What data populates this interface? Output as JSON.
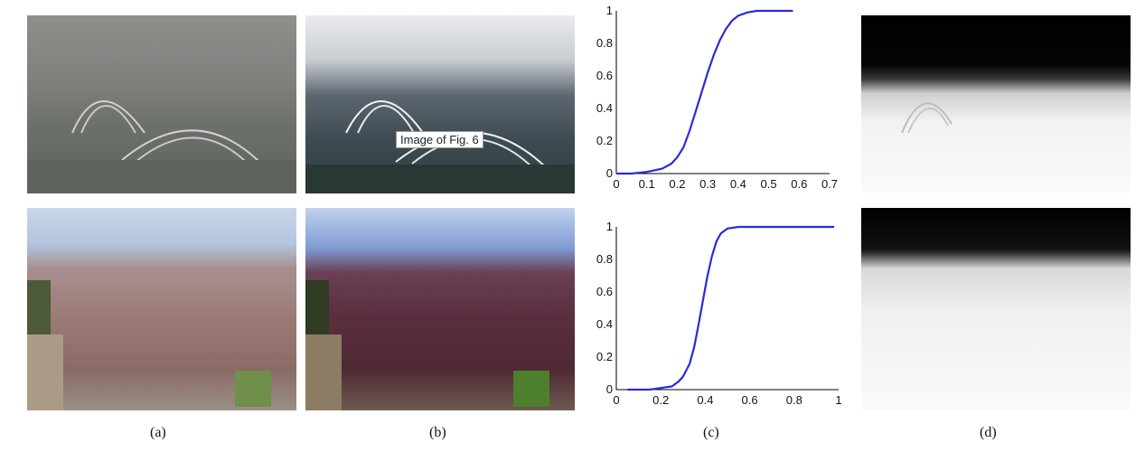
{
  "figure": {
    "tooltip": "Image of Fig. 6",
    "captions": [
      "(a)",
      "(b)",
      "(c)",
      "(d)"
    ]
  },
  "colors": {
    "curve": "#2b2bd6"
  },
  "chart_data": [
    {
      "type": "line",
      "xlim": [
        0,
        0.7
      ],
      "ylim": [
        0,
        1
      ],
      "xticks": [
        "0",
        "0.1",
        "0.2",
        "0.3",
        "0.4",
        "0.5",
        "0.6",
        "0.7"
      ],
      "yticks": [
        "0",
        "0.2",
        "0.4",
        "0.6",
        "0.8",
        "1"
      ],
      "series": [
        {
          "x": [
            0,
            0.05,
            0.1,
            0.15,
            0.18,
            0.2,
            0.22,
            0.24,
            0.26,
            0.28,
            0.3,
            0.32,
            0.34,
            0.36,
            0.38,
            0.4,
            0.43,
            0.46,
            0.5,
            0.55,
            0.58
          ],
          "y": [
            0,
            0.0,
            0.01,
            0.03,
            0.06,
            0.1,
            0.16,
            0.26,
            0.38,
            0.5,
            0.62,
            0.73,
            0.82,
            0.89,
            0.94,
            0.97,
            0.99,
            1.0,
            1.0,
            1.0,
            1.0
          ]
        }
      ]
    },
    {
      "type": "line",
      "xlim": [
        0,
        1
      ],
      "ylim": [
        0,
        1
      ],
      "xticks": [
        "0",
        "0.2",
        "0.4",
        "0.6",
        "0.8",
        "1"
      ],
      "yticks": [
        "0",
        "0.2",
        "0.4",
        "0.6",
        "0.8",
        "1"
      ],
      "series": [
        {
          "x": [
            0.05,
            0.15,
            0.2,
            0.25,
            0.28,
            0.3,
            0.33,
            0.35,
            0.37,
            0.39,
            0.41,
            0.43,
            0.45,
            0.47,
            0.5,
            0.55,
            0.6,
            0.7,
            0.8,
            0.9,
            0.98
          ],
          "y": [
            0,
            0,
            0.01,
            0.02,
            0.05,
            0.08,
            0.16,
            0.26,
            0.4,
            0.55,
            0.7,
            0.82,
            0.91,
            0.96,
            0.99,
            1.0,
            1.0,
            1.0,
            1.0,
            1.0,
            1.0
          ]
        }
      ]
    }
  ]
}
